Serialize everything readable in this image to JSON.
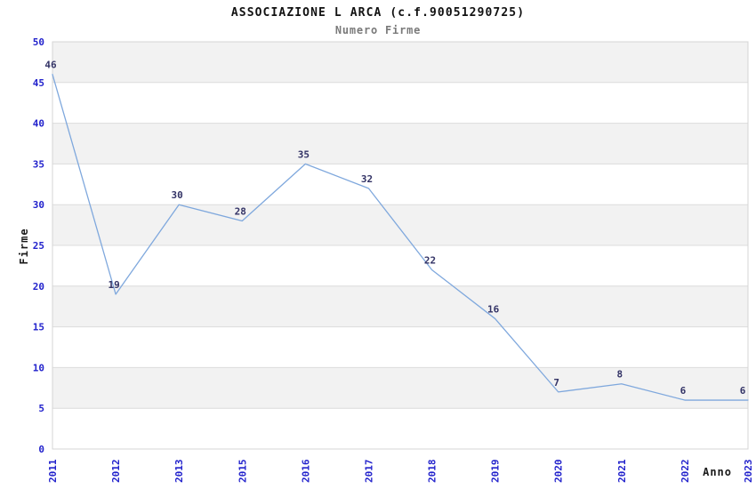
{
  "chart_data": {
    "type": "line",
    "title": "ASSOCIAZIONE L ARCA (c.f.90051290725)",
    "subtitle": "Numero Firme",
    "xlabel": "Anno",
    "ylabel": "Firme",
    "categories": [
      "2011",
      "2012",
      "2013",
      "2015",
      "2016",
      "2017",
      "2018",
      "2019",
      "2020",
      "2021",
      "2022",
      "2023"
    ],
    "values": [
      46,
      19,
      30,
      28,
      35,
      32,
      22,
      16,
      7,
      8,
      6,
      6
    ],
    "ylim": [
      0,
      50
    ],
    "ytick_step": 5,
    "yticks": [
      0,
      5,
      10,
      15,
      20,
      25,
      30,
      35,
      40,
      45,
      50
    ],
    "grid": "horizontal-bands-alternating",
    "legend": "none",
    "point_labels_visible": true,
    "colors": {
      "line": "#7fa8dd",
      "tick_labels": "#2222cc",
      "point_labels": "#333366",
      "band": "#f2f2f2",
      "grid_line": "#dcdcdc",
      "border": "#d4d4d4",
      "title": "#111111",
      "subtitle": "#7a7a7a",
      "axis_title": "#1a1a1a",
      "background": "#ffffff"
    }
  }
}
